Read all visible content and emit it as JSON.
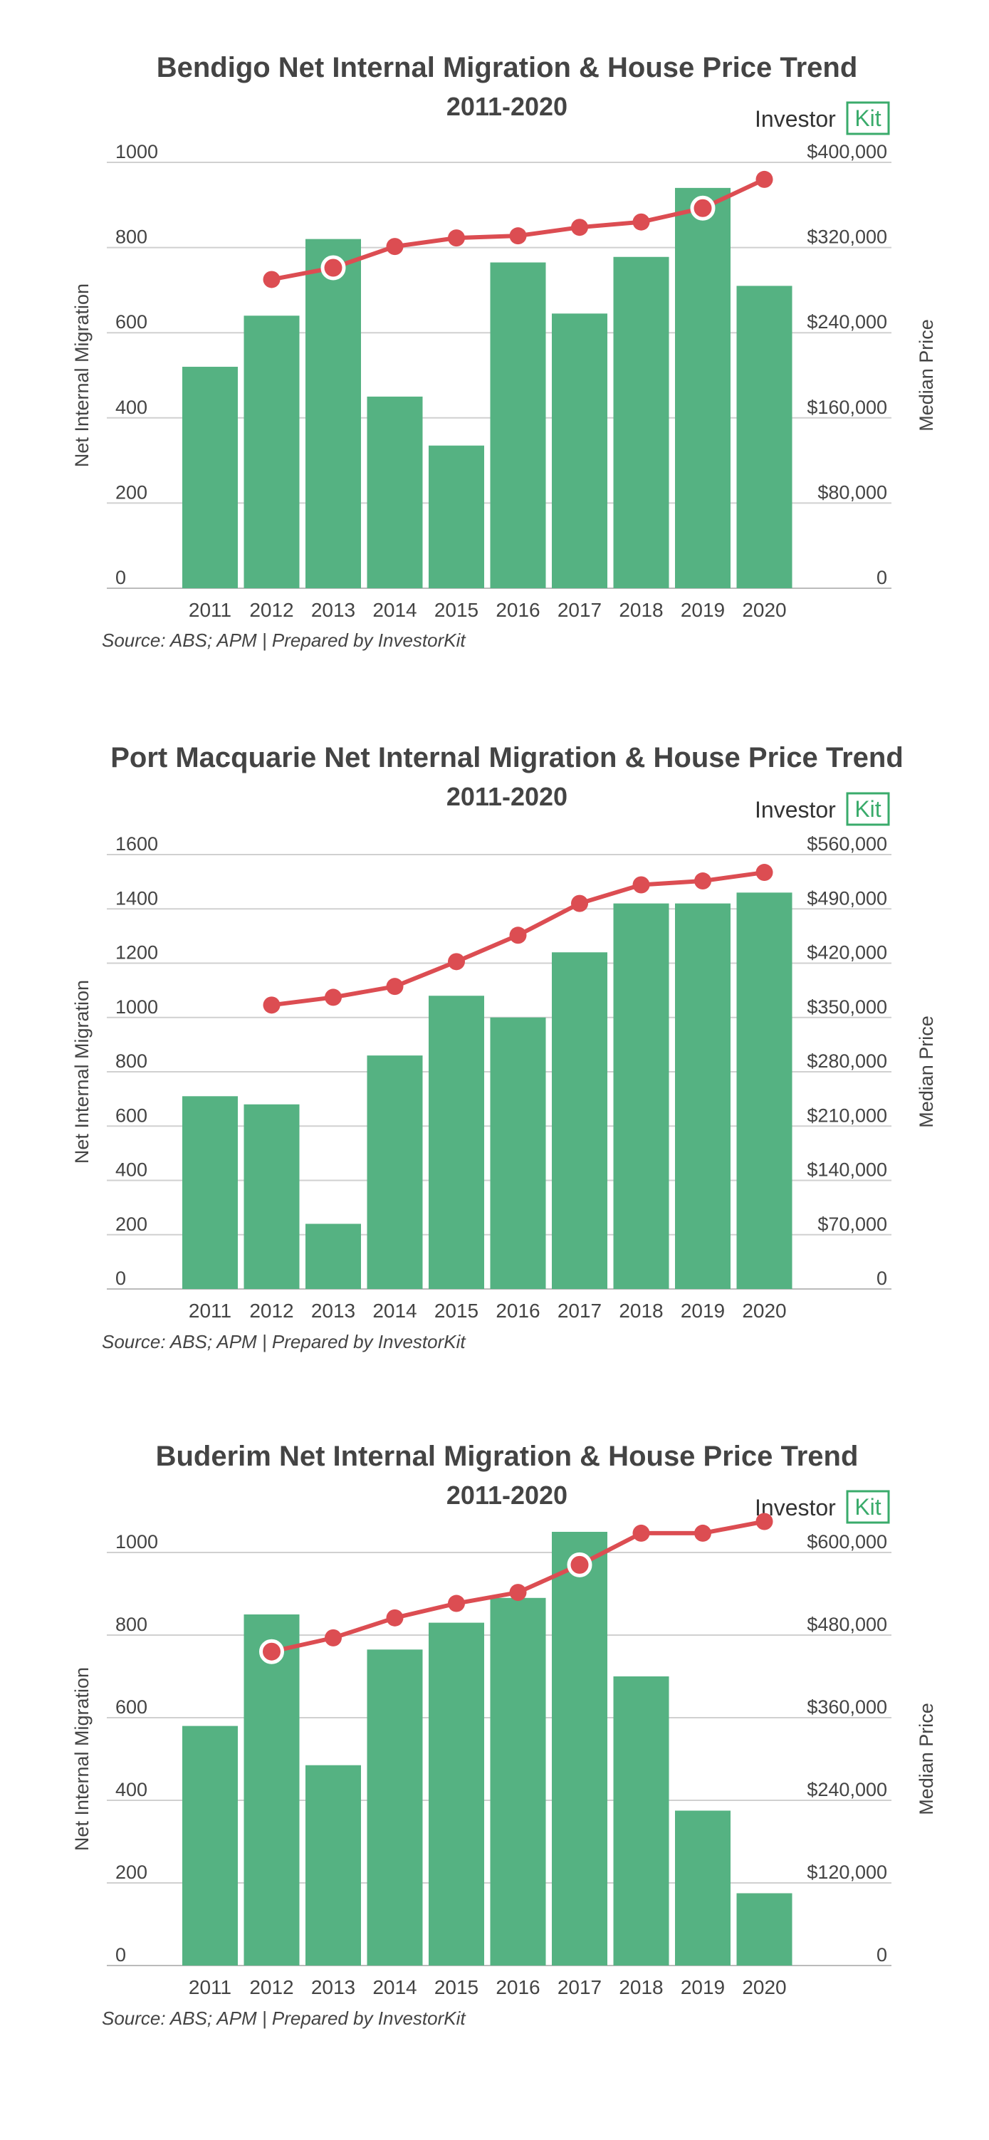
{
  "colors": {
    "bar": "#55b282",
    "line": "#dc4d52",
    "grid": "#d0d0d0",
    "text": "#444444",
    "brand": "#3aab6b"
  },
  "brand": {
    "text": "Investor",
    "mark": "Kit"
  },
  "chart_data": [
    {
      "type": "bar",
      "title": "Bendigo Net Internal Migration & House Price Trend",
      "subtitle": "2011-2020",
      "source": "Source: ABS; APM | Prepared by InvestorKit",
      "ylabel": "Net Internal Migration",
      "y2label": "Median Price",
      "categories": [
        "2011",
        "2012",
        "2013",
        "2014",
        "2015",
        "2016",
        "2017",
        "2018",
        "2019",
        "2020"
      ],
      "ylim": [
        0,
        1000
      ],
      "yticks": [
        0,
        200,
        400,
        600,
        800,
        1000
      ],
      "ytick_labels": [
        "0",
        "200",
        "400",
        "600",
        "800",
        "1000"
      ],
      "y2lim": [
        0,
        400000
      ],
      "y2ticks": [
        0,
        80000,
        160000,
        240000,
        320000,
        400000
      ],
      "y2tick_labels": [
        "0",
        "$80,000",
        "$160,000",
        "$240,000",
        "$320,000",
        "$400,000"
      ],
      "series": [
        {
          "kind": "bar",
          "axis": "left",
          "values": [
            520,
            640,
            820,
            450,
            335,
            765,
            645,
            778,
            940,
            710
          ]
        },
        {
          "kind": "line",
          "axis": "right",
          "values": [
            null,
            290000,
            301000,
            321000,
            329000,
            331000,
            339000,
            344000,
            357000,
            384000
          ],
          "highlight": [
            2,
            8
          ]
        }
      ],
      "grid": true
    },
    {
      "type": "bar",
      "title": "Port Macquarie Net Internal Migration & House Price Trend",
      "subtitle": "2011-2020",
      "source": "Source: ABS; APM | Prepared by InvestorKit",
      "ylabel": "Net Internal Migration",
      "y2label": "Median Price",
      "categories": [
        "2011",
        "2012",
        "2013",
        "2014",
        "2015",
        "2016",
        "2017",
        "2018",
        "2019",
        "2020"
      ],
      "ylim": [
        0,
        1600
      ],
      "yticks": [
        0,
        200,
        400,
        600,
        800,
        1000,
        1200,
        1400,
        1600
      ],
      "ytick_labels": [
        "0",
        "200",
        "400",
        "600",
        "800",
        "1000",
        "1200",
        "1400",
        "1600"
      ],
      "y2lim": [
        0,
        560000
      ],
      "y2ticks": [
        0,
        70000,
        140000,
        210000,
        280000,
        350000,
        420000,
        490000,
        560000
      ],
      "y2tick_labels": [
        "0",
        "$70,000",
        "$140,000",
        "$210,000",
        "$280,000",
        "$350,000",
        "$420,000",
        "$490,000",
        "$560,000"
      ],
      "series": [
        {
          "kind": "bar",
          "axis": "left",
          "values": [
            710,
            680,
            240,
            860,
            1080,
            1000,
            1240,
            1420,
            1420,
            1460
          ]
        },
        {
          "kind": "line",
          "axis": "right",
          "values": [
            null,
            366000,
            376000,
            390000,
            422000,
            456000,
            497000,
            521000,
            526000,
            537000
          ],
          "highlight": []
        }
      ],
      "grid": true
    },
    {
      "type": "bar",
      "title": "Buderim Net Internal Migration & House Price Trend",
      "subtitle": "2011-2020",
      "source": "Source: ABS; APM | Prepared by InvestorKit",
      "ylabel": "Net Internal Migration",
      "y2label": "Median Price",
      "categories": [
        "2011",
        "2012",
        "2013",
        "2014",
        "2015",
        "2016",
        "2017",
        "2018",
        "2019",
        "2020"
      ],
      "ylim": [
        0,
        1000
      ],
      "yticks": [
        0,
        200,
        400,
        600,
        800,
        1000
      ],
      "ytick_labels": [
        "0",
        "200",
        "400",
        "600",
        "800",
        "1000"
      ],
      "y2lim": [
        0,
        600000
      ],
      "y2ticks": [
        0,
        120000,
        240000,
        360000,
        480000,
        600000
      ],
      "y2tick_labels": [
        "0",
        "$120,000",
        "$240,000",
        "$360,000",
        "$480,000",
        "$600,000"
      ],
      "series": [
        {
          "kind": "bar",
          "axis": "left",
          "values": [
            580,
            850,
            485,
            765,
            830,
            890,
            1050,
            700,
            375,
            175
          ]
        },
        {
          "kind": "line",
          "axis": "right",
          "values": [
            null,
            456000,
            476000,
            505000,
            526000,
            542000,
            582000,
            628000,
            628000,
            645000
          ],
          "highlight": [
            1,
            6
          ]
        }
      ],
      "grid": true
    }
  ]
}
